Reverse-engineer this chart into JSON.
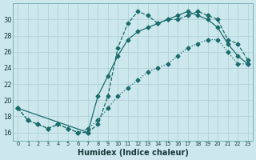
{
  "xlabel": "Humidex (Indice chaleur)",
  "background_color": "#cce8ec",
  "grid_color": "#b0d0d8",
  "line_color": "#1a6b6b",
  "xlim": [
    -0.5,
    23.5
  ],
  "ylim": [
    15,
    32
  ],
  "xticks": [
    0,
    1,
    2,
    3,
    4,
    5,
    6,
    7,
    8,
    9,
    10,
    11,
    12,
    13,
    14,
    15,
    16,
    17,
    18,
    19,
    20,
    21,
    22,
    23
  ],
  "yticks": [
    16,
    18,
    20,
    22,
    24,
    26,
    28,
    30
  ],
  "line1_x": [
    0,
    1,
    2,
    3,
    4,
    5,
    6,
    7,
    8,
    9,
    10,
    11,
    12,
    13,
    14,
    15,
    16,
    17,
    18,
    19,
    20,
    21,
    22,
    23
  ],
  "line1_y": [
    19.0,
    17.5,
    17.0,
    16.5,
    17.0,
    16.5,
    16.0,
    16.0,
    17.0,
    20.5,
    26.5,
    29.5,
    31.0,
    30.5,
    29.5,
    30.0,
    30.0,
    30.5,
    31.0,
    30.5,
    30.0,
    27.5,
    27.0,
    25.0
  ],
  "line2_x": [
    0,
    7,
    8,
    9,
    10,
    11,
    12,
    13,
    14,
    15,
    16,
    17,
    18,
    19,
    20,
    21,
    22,
    23
  ],
  "line2_y": [
    19.0,
    16.0,
    20.5,
    23.0,
    25.5,
    27.5,
    28.5,
    29.0,
    29.5,
    30.0,
    30.5,
    31.0,
    30.5,
    30.0,
    29.0,
    27.0,
    25.5,
    24.5
  ],
  "line3_x": [
    0,
    1,
    2,
    3,
    4,
    5,
    6,
    7,
    8,
    9,
    10,
    11,
    12,
    13,
    14,
    15,
    16,
    17,
    18,
    19,
    20,
    21,
    22,
    23
  ],
  "line3_y": [
    19.0,
    17.5,
    17.0,
    16.5,
    17.0,
    16.5,
    16.0,
    16.5,
    17.5,
    19.0,
    20.5,
    21.5,
    22.5,
    23.5,
    24.0,
    24.5,
    25.5,
    26.5,
    27.0,
    27.5,
    27.5,
    26.0,
    24.5,
    24.5
  ]
}
